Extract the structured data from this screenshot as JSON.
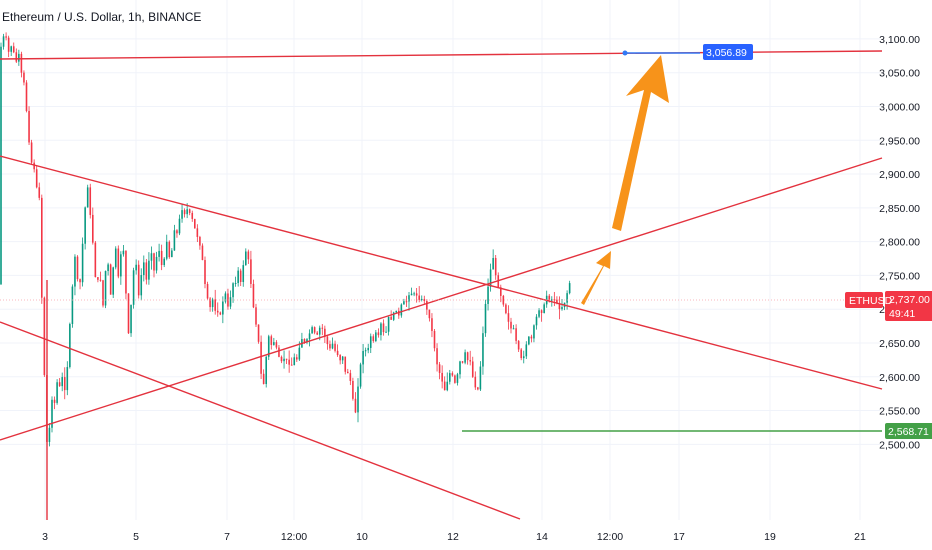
{
  "chart_data": {
    "type": "candlestick",
    "title": "Ethereum / U.S. Dollar, 1h, BINANCE",
    "symbol": "ETHUSD",
    "last_price": "2,737.00",
    "countdown": "49:41",
    "target_label": "3,056.89",
    "support_label": "2,568.71",
    "ylim": [
      2462,
      3128
    ],
    "y_ticks": [
      "3,100.00",
      "3,050.00",
      "3,000.00",
      "2,950.00",
      "2,900.00",
      "2,850.00",
      "2,800.00",
      "2,750.00",
      "2,700.00",
      "2,650.00",
      "2,600.00",
      "2,550.00",
      "2,500.00"
    ],
    "x_ticks": [
      "3",
      "5",
      "7",
      "12:00",
      "10",
      "12",
      "14",
      "12:00",
      "17",
      "19",
      "21"
    ],
    "price_path": [
      [
        0,
        3120
      ],
      [
        2,
        3085
      ],
      [
        4,
        3110
      ],
      [
        6,
        3095
      ],
      [
        8,
        3105
      ],
      [
        10,
        3080
      ],
      [
        12,
        3095
      ],
      [
        14,
        3070
      ],
      [
        16,
        3090
      ],
      [
        18,
        3060
      ],
      [
        20,
        3080
      ],
      [
        22,
        3045
      ],
      [
        24,
        3060
      ],
      [
        26,
        3020
      ],
      [
        28,
        2990
      ],
      [
        30,
        2950
      ],
      [
        32,
        2930
      ],
      [
        34,
        2900
      ],
      [
        36,
        2910
      ],
      [
        38,
        2880
      ],
      [
        40,
        2870
      ],
      [
        41,
        2860
      ],
      [
        42,
        2780
      ],
      [
        43,
        2720
      ],
      [
        44,
        2680
      ],
      [
        45,
        2640
      ],
      [
        46,
        2580
      ],
      [
        47,
        2540
      ],
      [
        48,
        2500
      ],
      [
        49,
        2520
      ],
      [
        50,
        2510
      ],
      [
        51,
        2530
      ],
      [
        52,
        2550
      ],
      [
        54,
        2575
      ],
      [
        56,
        2560
      ],
      [
        58,
        2590
      ],
      [
        60,
        2600
      ],
      [
        62,
        2570
      ],
      [
        64,
        2610
      ],
      [
        66,
        2580
      ],
      [
        68,
        2600
      ],
      [
        70,
        2650
      ],
      [
        72,
        2700
      ],
      [
        74,
        2740
      ],
      [
        76,
        2780
      ],
      [
        78,
        2760
      ],
      [
        80,
        2720
      ],
      [
        82,
        2750
      ],
      [
        84,
        2800
      ],
      [
        86,
        2840
      ],
      [
        88,
        2890
      ],
      [
        90,
        2870
      ],
      [
        92,
        2830
      ],
      [
        94,
        2800
      ],
      [
        96,
        2760
      ],
      [
        98,
        2720
      ],
      [
        100,
        2760
      ],
      [
        102,
        2740
      ],
      [
        104,
        2700
      ],
      [
        106,
        2740
      ],
      [
        108,
        2780
      ],
      [
        110,
        2760
      ],
      [
        112,
        2720
      ],
      [
        114,
        2750
      ],
      [
        116,
        2800
      ],
      [
        118,
        2780
      ],
      [
        120,
        2740
      ],
      [
        122,
        2780
      ],
      [
        124,
        2800
      ],
      [
        126,
        2760
      ],
      [
        128,
        2700
      ],
      [
        130,
        2660
      ],
      [
        132,
        2700
      ],
      [
        134,
        2740
      ],
      [
        136,
        2780
      ],
      [
        138,
        2760
      ],
      [
        140,
        2720
      ],
      [
        142,
        2740
      ],
      [
        144,
        2780
      ],
      [
        146,
        2760
      ],
      [
        148,
        2740
      ],
      [
        150,
        2770
      ],
      [
        152,
        2790
      ],
      [
        154,
        2770
      ],
      [
        156,
        2750
      ],
      [
        158,
        2780
      ],
      [
        160,
        2790
      ],
      [
        162,
        2770
      ],
      [
        164,
        2760
      ],
      [
        166,
        2780
      ],
      [
        168,
        2800
      ],
      [
        170,
        2780
      ],
      [
        172,
        2770
      ],
      [
        174,
        2800
      ],
      [
        176,
        2820
      ],
      [
        178,
        2810
      ],
      [
        180,
        2830
      ],
      [
        182,
        2840
      ],
      [
        184,
        2850
      ],
      [
        186,
        2840
      ],
      [
        188,
        2850
      ],
      [
        190,
        2840
      ],
      [
        192,
        2845
      ],
      [
        194,
        2830
      ],
      [
        196,
        2820
      ],
      [
        198,
        2810
      ],
      [
        200,
        2800
      ],
      [
        202,
        2790
      ],
      [
        204,
        2770
      ],
      [
        206,
        2740
      ],
      [
        208,
        2720
      ],
      [
        210,
        2710
      ],
      [
        212,
        2700
      ],
      [
        214,
        2715
      ],
      [
        216,
        2700
      ],
      [
        218,
        2690
      ],
      [
        220,
        2700
      ],
      [
        222,
        2690
      ],
      [
        224,
        2710
      ],
      [
        226,
        2730
      ],
      [
        228,
        2710
      ],
      [
        230,
        2700
      ],
      [
        232,
        2720
      ],
      [
        234,
        2740
      ],
      [
        236,
        2730
      ],
      [
        238,
        2750
      ],
      [
        240,
        2760
      ],
      [
        242,
        2740
      ],
      [
        244,
        2760
      ],
      [
        246,
        2780
      ],
      [
        248,
        2790
      ],
      [
        250,
        2770
      ],
      [
        252,
        2740
      ],
      [
        254,
        2710
      ],
      [
        256,
        2690
      ],
      [
        258,
        2670
      ],
      [
        260,
        2650
      ],
      [
        262,
        2610
      ],
      [
        264,
        2580
      ],
      [
        266,
        2600
      ],
      [
        268,
        2640
      ],
      [
        270,
        2660
      ],
      [
        272,
        2650
      ],
      [
        274,
        2640
      ],
      [
        276,
        2660
      ],
      [
        278,
        2640
      ],
      [
        280,
        2630
      ],
      [
        282,
        2625
      ],
      [
        284,
        2620
      ],
      [
        286,
        2630
      ],
      [
        288,
        2625
      ],
      [
        290,
        2620
      ],
      [
        292,
        2610
      ],
      [
        294,
        2625
      ],
      [
        296,
        2630
      ],
      [
        298,
        2625
      ],
      [
        300,
        2640
      ],
      [
        302,
        2650
      ],
      [
        304,
        2660
      ],
      [
        306,
        2650
      ],
      [
        308,
        2655
      ],
      [
        310,
        2660
      ],
      [
        312,
        2670
      ],
      [
        314,
        2675
      ],
      [
        316,
        2665
      ],
      [
        318,
        2660
      ],
      [
        320,
        2670
      ],
      [
        322,
        2675
      ],
      [
        324,
        2670
      ],
      [
        326,
        2660
      ],
      [
        328,
        2650
      ],
      [
        330,
        2645
      ],
      [
        332,
        2640
      ],
      [
        334,
        2650
      ],
      [
        336,
        2640
      ],
      [
        338,
        2630
      ],
      [
        340,
        2635
      ],
      [
        342,
        2620
      ],
      [
        344,
        2630
      ],
      [
        346,
        2610
      ],
      [
        348,
        2600
      ],
      [
        350,
        2610
      ],
      [
        352,
        2590
      ],
      [
        354,
        2570
      ],
      [
        356,
        2540
      ],
      [
        358,
        2560
      ],
      [
        360,
        2600
      ],
      [
        362,
        2620
      ],
      [
        364,
        2640
      ],
      [
        366,
        2630
      ],
      [
        368,
        2650
      ],
      [
        370,
        2640
      ],
      [
        372,
        2660
      ],
      [
        374,
        2650
      ],
      [
        376,
        2660
      ],
      [
        378,
        2670
      ],
      [
        380,
        2660
      ],
      [
        382,
        2680
      ],
      [
        384,
        2670
      ],
      [
        386,
        2660
      ],
      [
        388,
        2670
      ],
      [
        390,
        2690
      ],
      [
        392,
        2680
      ],
      [
        394,
        2700
      ],
      [
        396,
        2690
      ],
      [
        398,
        2700
      ],
      [
        400,
        2690
      ],
      [
        402,
        2710
      ],
      [
        404,
        2700
      ],
      [
        406,
        2720
      ],
      [
        408,
        2710
      ],
      [
        410,
        2720
      ],
      [
        412,
        2725
      ],
      [
        414,
        2720
      ],
      [
        416,
        2725
      ],
      [
        418,
        2720
      ],
      [
        420,
        2715
      ],
      [
        422,
        2710
      ],
      [
        424,
        2720
      ],
      [
        426,
        2710
      ],
      [
        428,
        2700
      ],
      [
        430,
        2690
      ],
      [
        432,
        2680
      ],
      [
        434,
        2660
      ],
      [
        436,
        2640
      ],
      [
        438,
        2620
      ],
      [
        440,
        2610
      ],
      [
        442,
        2600
      ],
      [
        444,
        2590
      ],
      [
        446,
        2580
      ],
      [
        448,
        2590
      ],
      [
        450,
        2600
      ],
      [
        452,
        2610
      ],
      [
        454,
        2600
      ],
      [
        456,
        2590
      ],
      [
        458,
        2600
      ],
      [
        460,
        2610
      ],
      [
        462,
        2630
      ],
      [
        464,
        2620
      ],
      [
        466,
        2640
      ],
      [
        468,
        2620
      ],
      [
        470,
        2630
      ],
      [
        472,
        2620
      ],
      [
        474,
        2600
      ],
      [
        476,
        2590
      ],
      [
        478,
        2570
      ],
      [
        480,
        2590
      ],
      [
        482,
        2620
      ],
      [
        484,
        2660
      ],
      [
        486,
        2700
      ],
      [
        488,
        2720
      ],
      [
        490,
        2740
      ],
      [
        492,
        2760
      ],
      [
        494,
        2780
      ],
      [
        496,
        2760
      ],
      [
        498,
        2740
      ],
      [
        500,
        2730
      ],
      [
        502,
        2720
      ],
      [
        504,
        2710
      ],
      [
        506,
        2700
      ],
      [
        508,
        2690
      ],
      [
        510,
        2680
      ],
      [
        512,
        2670
      ],
      [
        514,
        2680
      ],
      [
        516,
        2660
      ],
      [
        518,
        2650
      ],
      [
        520,
        2640
      ],
      [
        522,
        2630
      ],
      [
        524,
        2620
      ],
      [
        526,
        2640
      ],
      [
        528,
        2650
      ],
      [
        530,
        2660
      ],
      [
        532,
        2650
      ],
      [
        534,
        2670
      ],
      [
        536,
        2680
      ],
      [
        538,
        2690
      ],
      [
        540,
        2700
      ],
      [
        542,
        2690
      ],
      [
        544,
        2700
      ],
      [
        546,
        2710
      ],
      [
        548,
        2720
      ],
      [
        550,
        2710
      ],
      [
        552,
        2720
      ],
      [
        554,
        2710
      ],
      [
        556,
        2715
      ],
      [
        558,
        2710
      ],
      [
        560,
        2700
      ],
      [
        562,
        2700
      ],
      [
        564,
        2705
      ],
      [
        566,
        2710
      ],
      [
        568,
        2720
      ],
      [
        570,
        2740
      ],
      [
        572,
        2737
      ]
    ]
  }
}
